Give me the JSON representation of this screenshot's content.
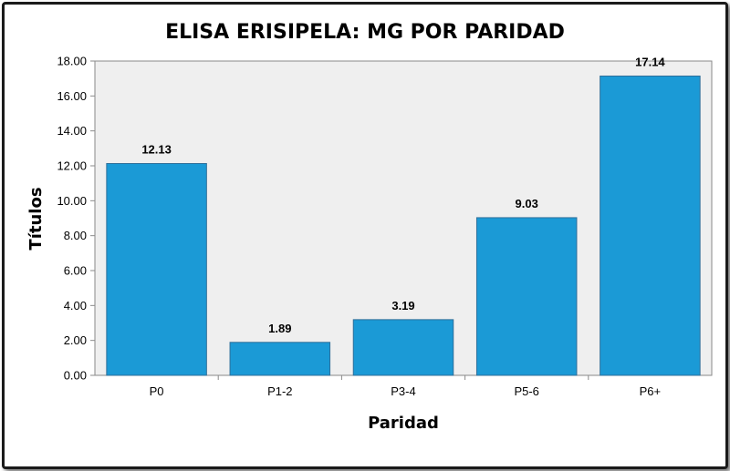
{
  "chart_data": {
    "type": "bar",
    "title": "ELISA ERISIPELA: MG POR PARIDAD",
    "xlabel": "Paridad",
    "ylabel": "Títulos",
    "categories": [
      "P0",
      "P1-2",
      "P3-4",
      "P5-6",
      "P6+"
    ],
    "values": [
      12.13,
      1.89,
      3.19,
      9.03,
      17.14
    ],
    "data_labels": [
      "12.13",
      "1.89",
      "3.19",
      "9.03",
      "17.14"
    ],
    "ylim": [
      0,
      18
    ],
    "yticks": [
      "0.00",
      "2.00",
      "4.00",
      "6.00",
      "8.00",
      "10.00",
      "12.00",
      "14.00",
      "16.00",
      "18.00"
    ],
    "grid": false,
    "legend": "none",
    "colors": {
      "bar": "#1b9ad6",
      "bar_edge": "#2f6f9a",
      "plot_bg": "#efefef"
    }
  }
}
